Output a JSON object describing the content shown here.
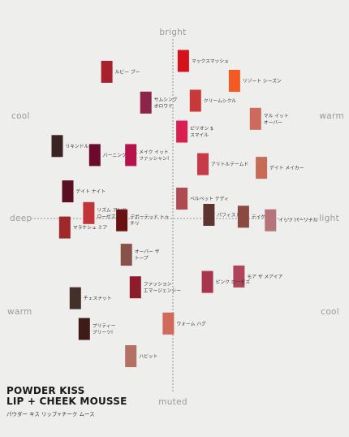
{
  "brand": {
    "line1": "POWDER KISS",
    "line2": "LIP + CHEEK MOUSSE",
    "subtitle": "パウダー キス リップ+チーク ムース"
  },
  "chart_data": {
    "type": "scatter",
    "xlabel_left": "deep",
    "xlabel_right": "light",
    "ylabel_top": "bright",
    "ylabel_bottom": "muted",
    "corner_labels": {
      "top_left": "cool",
      "top_right": "warm",
      "bottom_left": "warm",
      "bottom_right": "cool"
    },
    "xlim": [
      -10,
      10
    ],
    "ylim": [
      -10,
      10
    ],
    "points": [
      {
        "label": "ルビー ブー",
        "x": -4.4,
        "y": 8.1,
        "color": "#a8222e"
      },
      {
        "label": "マックスマッシュ",
        "x": 0.7,
        "y": 8.7,
        "color": "#d4121c"
      },
      {
        "label": "リゾート シーズン",
        "x": 4.1,
        "y": 7.6,
        "color": "#f15a22"
      },
      {
        "label": "サムシング ボロウド",
        "x": -1.8,
        "y": 6.4,
        "color": "#8c2348"
      },
      {
        "label": "クリームシクル",
        "x": 1.5,
        "y": 6.5,
        "color": "#c83a3a"
      },
      {
        "label": "マル イット オーバー",
        "x": 5.5,
        "y": 5.5,
        "color": "#cc6a5c"
      },
      {
        "label": "ピリオン $ スマイル",
        "x": 0.6,
        "y": 4.8,
        "color": "#d91e54"
      },
      {
        "label": "リキンドル",
        "x": -7.7,
        "y": 4.0,
        "color": "#3a2322"
      },
      {
        "label": "バーニング ラブ",
        "x": -5.2,
        "y": 3.5,
        "color": "#6b0a2c"
      },
      {
        "label": "メイク イット ファッシャン!",
        "x": -2.8,
        "y": 3.5,
        "color": "#b5124c"
      },
      {
        "label": "アリトルテームド",
        "x": 2.0,
        "y": 3.0,
        "color": "#c93a48"
      },
      {
        "label": "デイト メイカー",
        "x": 5.9,
        "y": 2.8,
        "color": "#c76a56"
      },
      {
        "label": "デイト ナイト",
        "x": -7.0,
        "y": 1.5,
        "color": "#5a0f22"
      },
      {
        "label": "ベルベット テディ",
        "x": 0.6,
        "y": 1.1,
        "color": "#b04a52"
      },
      {
        "label": "リズム アンド ローゼズ",
        "x": -5.6,
        "y": 0.3,
        "color": "#c0343a"
      },
      {
        "label": "パフィスト",
        "x": 2.4,
        "y": 0.2,
        "color": "#5e342e"
      },
      {
        "label": "テイケン",
        "x": 4.7,
        "y": 0.1,
        "color": "#8a4a42"
      },
      {
        "label": "イッツ パーソナル",
        "x": 6.5,
        "y": -0.1,
        "color": "#b67478"
      },
      {
        "label": "デボーテッド トゥ チリ",
        "x": -3.4,
        "y": -0.1,
        "color": "#6a1212"
      },
      {
        "label": "マラケシュ ミア",
        "x": -7.2,
        "y": -0.5,
        "color": "#a0282a"
      },
      {
        "label": "オーバー ザ トープ",
        "x": -3.1,
        "y": -2.0,
        "color": "#88524a"
      },
      {
        "label": "モア ザ メアイア",
        "x": 4.4,
        "y": -3.2,
        "color": "#b0445a"
      },
      {
        "label": "ピンク ローゼズ",
        "x": 2.3,
        "y": -3.5,
        "color": "#a8344e"
      },
      {
        "label": "ファッション エマージェンシー",
        "x": -2.5,
        "y": -3.8,
        "color": "#8c1c2a"
      },
      {
        "label": "チェスナット",
        "x": -6.5,
        "y": -4.4,
        "color": "#44302a"
      },
      {
        "label": "ウォーム ハグ",
        "x": -0.3,
        "y": -5.8,
        "color": "#d06a5a"
      },
      {
        "label": "プリティー プリーツ!",
        "x": -5.9,
        "y": -6.1,
        "color": "#3e1a18"
      },
      {
        "label": "ハビット",
        "x": -2.8,
        "y": -7.6,
        "color": "#b47064"
      }
    ]
  }
}
